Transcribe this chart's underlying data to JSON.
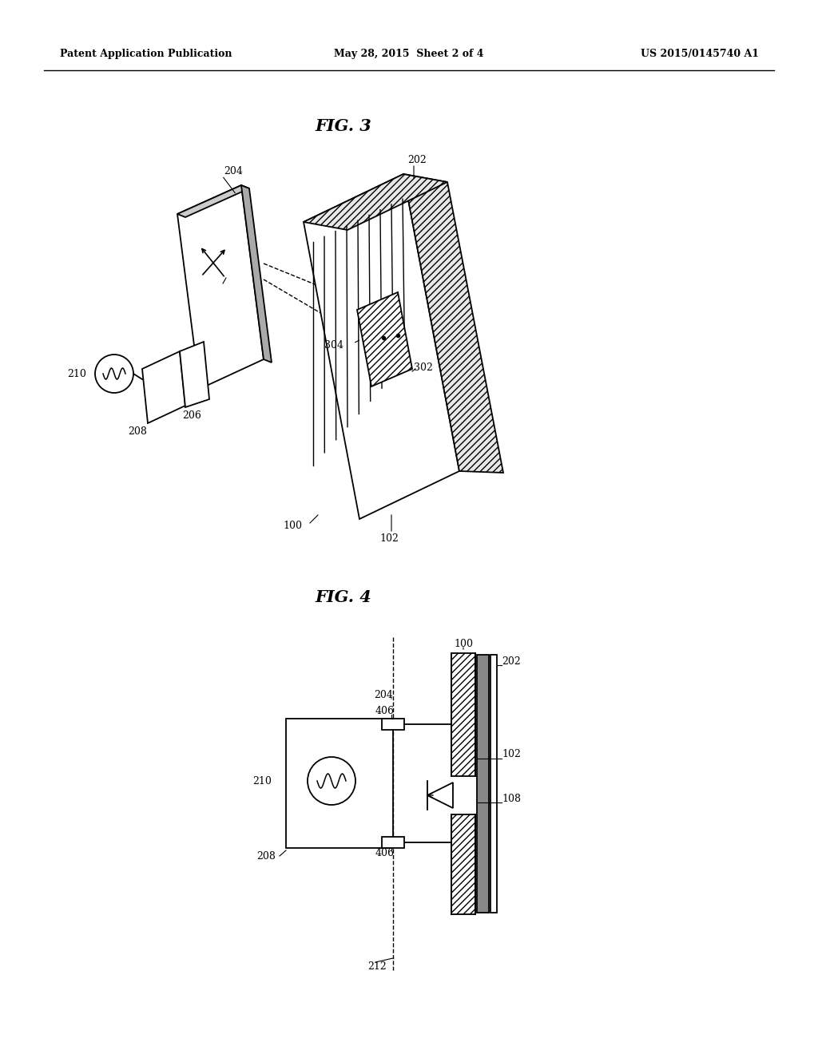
{
  "header_left": "Patent Application Publication",
  "header_center": "May 28, 2015  Sheet 2 of 4",
  "header_right": "US 2015/0145740 A1",
  "fig3_title": "FIG. 3",
  "fig4_title": "FIG. 4",
  "bg_color": "#ffffff",
  "line_color": "#000000"
}
